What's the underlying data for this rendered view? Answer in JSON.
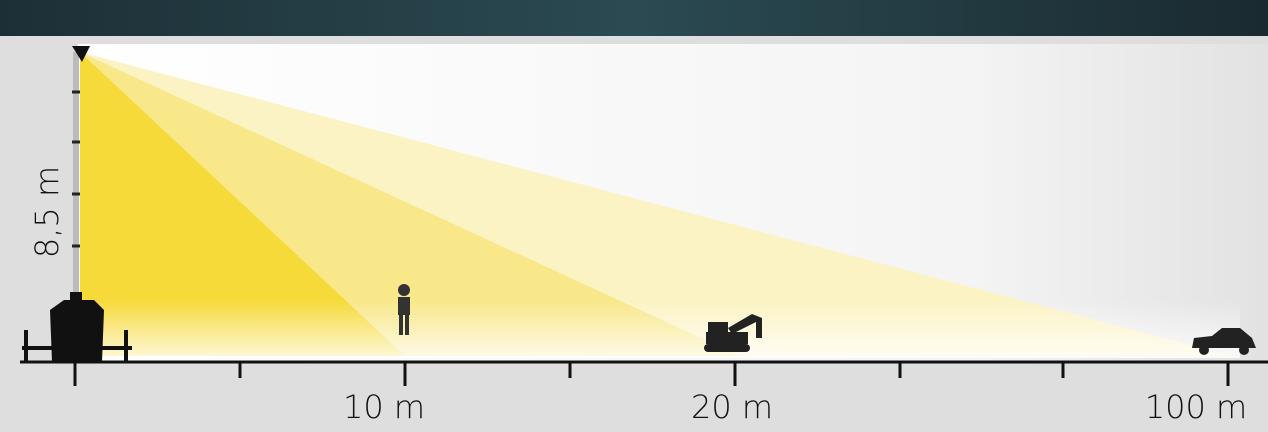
{
  "height_label": "8,5 m",
  "distance_labels": [
    "10 m",
    "20 m",
    "100 m"
  ]
}
